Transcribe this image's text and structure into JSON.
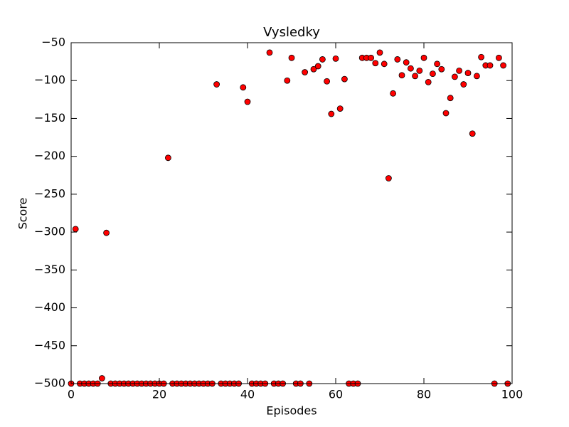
{
  "chart_data": {
    "type": "scatter",
    "title": "Vysledky",
    "x_label": "Episodes",
    "y_label": "Score",
    "x": [
      0,
      1,
      2,
      3,
      4,
      5,
      6,
      7,
      8,
      9,
      10,
      11,
      12,
      13,
      14,
      15,
      16,
      17,
      18,
      19,
      20,
      21,
      22,
      23,
      24,
      25,
      26,
      27,
      28,
      29,
      30,
      31,
      32,
      33,
      34,
      35,
      36,
      37,
      38,
      39,
      40,
      41,
      42,
      43,
      44,
      45,
      46,
      47,
      48,
      49,
      50,
      51,
      52,
      53,
      54,
      55,
      56,
      57,
      58,
      59,
      60,
      61,
      62,
      63,
      64,
      65,
      66,
      67,
      68,
      69,
      70,
      71,
      72,
      73,
      74,
      75,
      76,
      77,
      78,
      79,
      80,
      81,
      82,
      83,
      84,
      85,
      86,
      87,
      88,
      89,
      90,
      91,
      92,
      93,
      94,
      95,
      96,
      97,
      98,
      99
    ],
    "y": [
      -500,
      -296,
      -500,
      -500,
      -500,
      -500,
      -500,
      -493,
      -301,
      -500,
      -500,
      -500,
      -500,
      -500,
      -500,
      -500,
      -500,
      -500,
      -500,
      -500,
      -500,
      -500,
      -202,
      -500,
      -500,
      -500,
      -500,
      -500,
      -500,
      -500,
      -500,
      -500,
      -500,
      -105,
      -500,
      -500,
      -500,
      -500,
      -500,
      -109,
      -128,
      -500,
      -500,
      -500,
      -500,
      -63,
      -500,
      -500,
      -500,
      -100,
      -70,
      -500,
      -500,
      -89,
      -500,
      -85,
      -81,
      -72,
      -101,
      -144,
      -71,
      -137,
      -98,
      -500,
      -500,
      -500,
      -70,
      -70,
      -70,
      -77,
      -63,
      -78,
      -229,
      -117,
      -72,
      -93,
      -76,
      -84,
      -94,
      -87,
      -70,
      -102,
      -91,
      -78,
      -85,
      -143,
      -123,
      -95,
      -87,
      -105,
      -90,
      -170,
      -94,
      -69,
      -80,
      -80,
      -500,
      -70,
      -80,
      -500
    ],
    "color": "#ff0000",
    "xlim": [
      0,
      100
    ],
    "xticks": [
      0,
      20,
      40,
      60,
      80,
      100
    ],
    "ylim": [
      -500,
      -50
    ],
    "yticks": [
      {
        "value": -500,
        "label": "−500"
      },
      {
        "value": -450,
        "label": "−450"
      },
      {
        "value": -400,
        "label": "−400"
      },
      {
        "value": -350,
        "label": "−350"
      },
      {
        "value": -300,
        "label": "−300"
      },
      {
        "value": -250,
        "label": "−250"
      },
      {
        "value": -200,
        "label": "−200"
      },
      {
        "value": -150,
        "label": "−150"
      },
      {
        "value": -100,
        "label": "−100"
      },
      {
        "value": -50,
        "label": "−50"
      }
    ]
  }
}
